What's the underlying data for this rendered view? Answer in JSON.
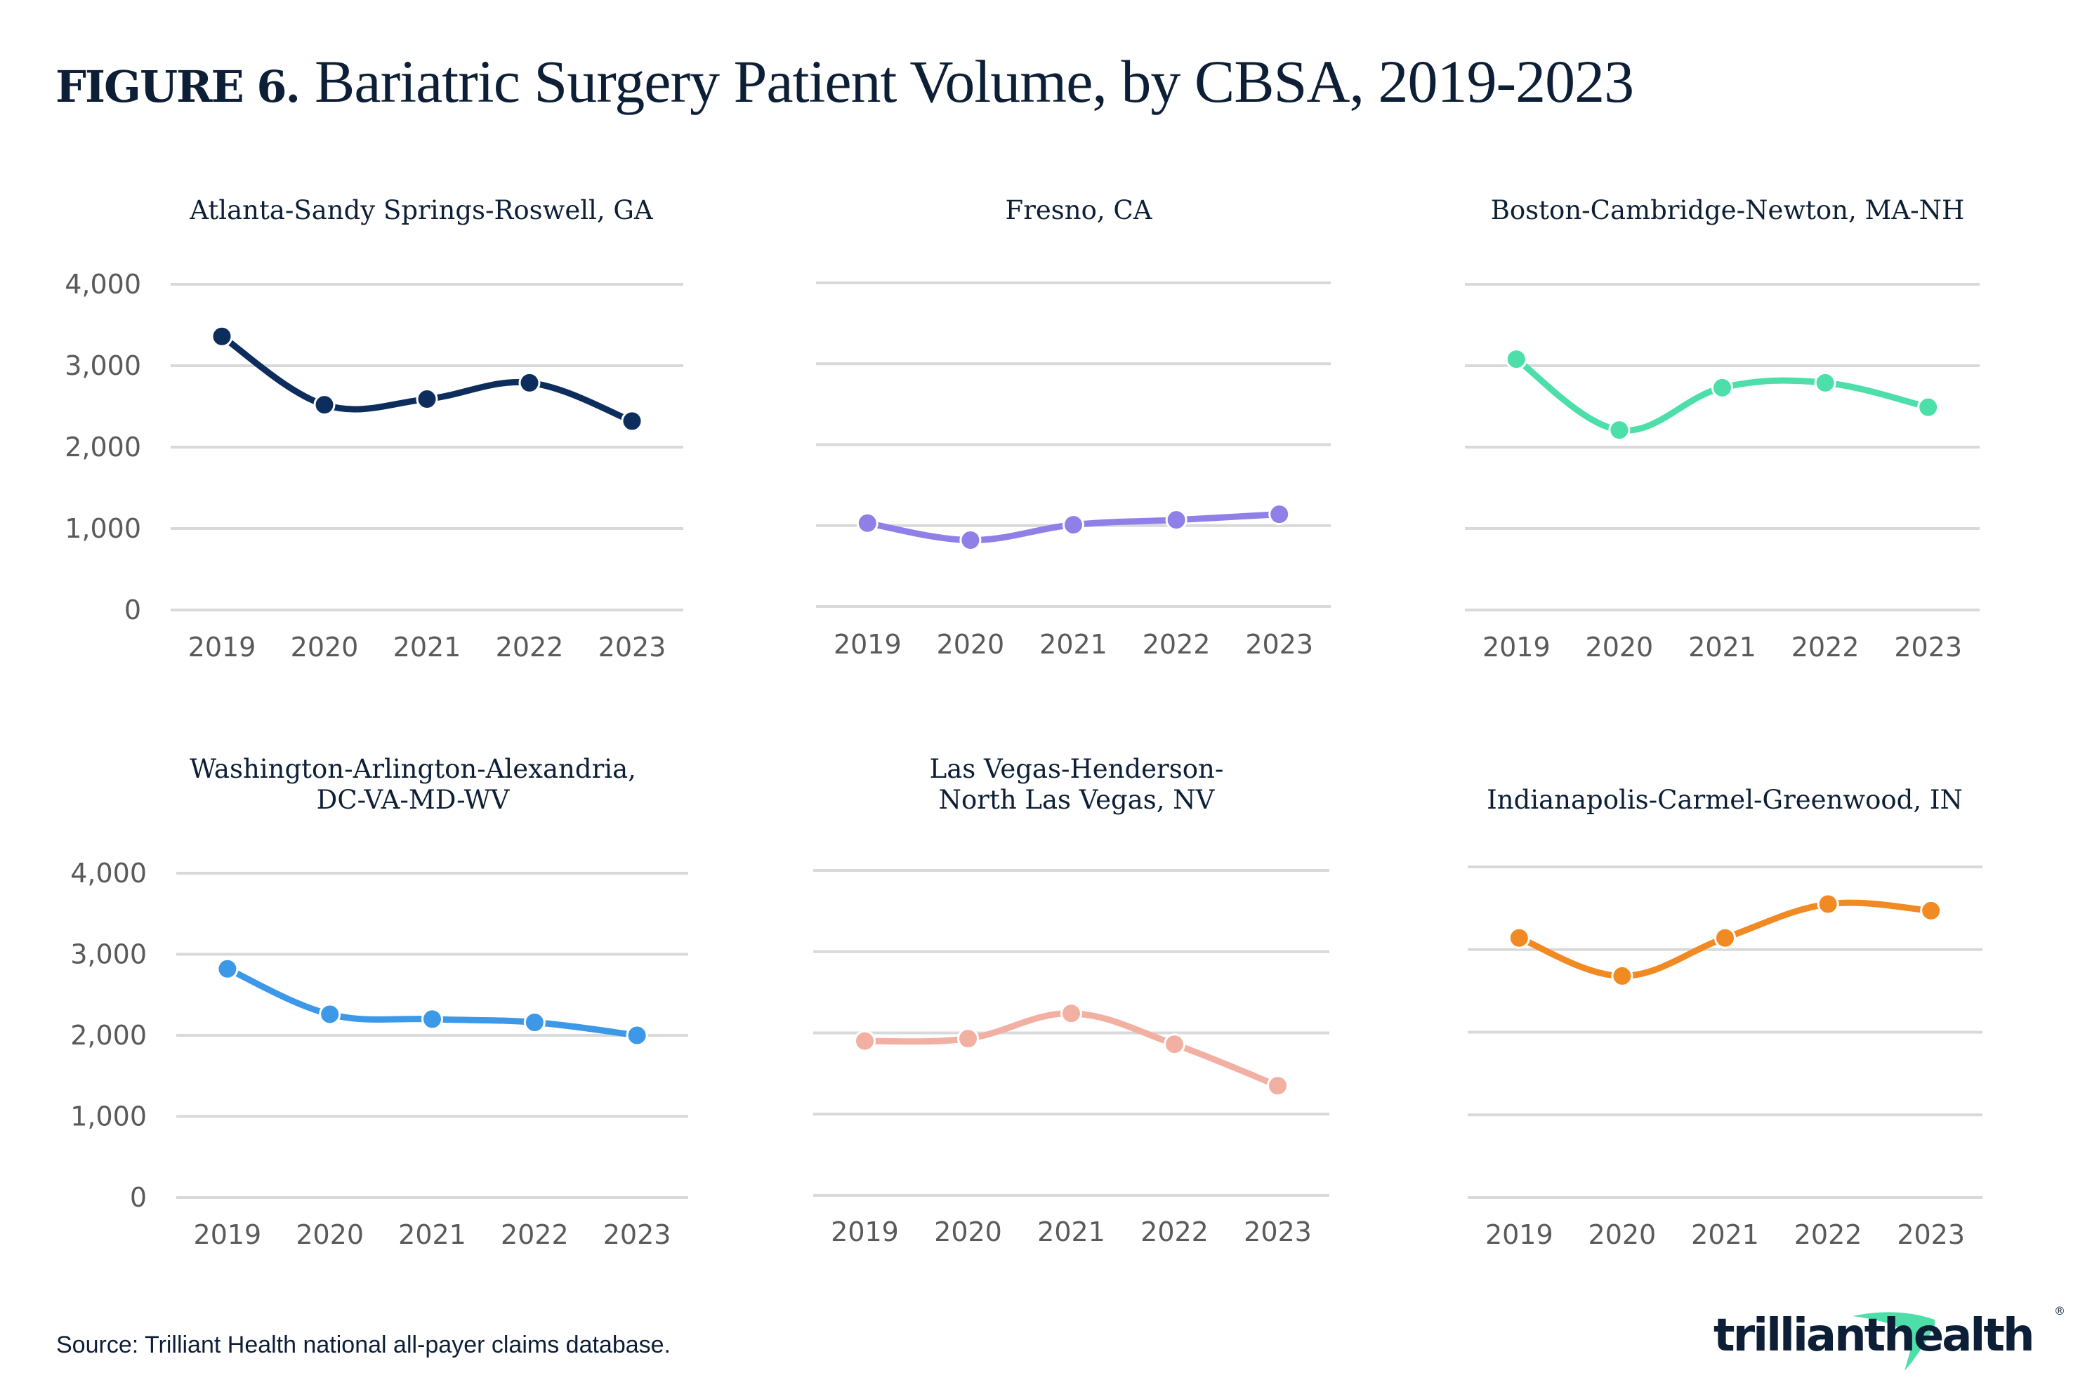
{
  "figure": {
    "number_label": "FIGURE 6.",
    "title": "Bariatric Surgery Patient Volume, by CBSA, 2019-2023"
  },
  "source": "Source: Trilliant Health national all-payer claims database.",
  "logo": {
    "text_left": "trilliant",
    "text_right": "health",
    "registered_mark": "®",
    "accent_color": "#4cdfa9"
  },
  "chart_data": [
    {
      "type": "line",
      "title": "Atlanta-Sandy Springs-Roswell, GA",
      "title_lines": [
        "Atlanta-Sandy Springs-Roswell, GA"
      ],
      "categories": [
        "2019",
        "2020",
        "2021",
        "2022",
        "2023"
      ],
      "series": [
        {
          "name": "Patient Volume",
          "values": [
            3360,
            2520,
            2590,
            2790,
            2320
          ],
          "color": "#0d2e5c"
        }
      ],
      "ylim": [
        0,
        4000
      ],
      "yticks": [
        0,
        1000,
        2000,
        3000,
        4000
      ],
      "ytick_labels": [
        "0",
        "1,000",
        "2,000",
        "3,000",
        "4,000"
      ],
      "show_ytick_labels": true,
      "grid": true,
      "xlabel": "",
      "ylabel": ""
    },
    {
      "type": "line",
      "title": "Fresno, CA",
      "title_lines": [
        "Fresno, CA"
      ],
      "categories": [
        "2019",
        "2020",
        "2021",
        "2022",
        "2023"
      ],
      "series": [
        {
          "name": "Patient Volume",
          "values": [
            1030,
            820,
            1010,
            1070,
            1140
          ],
          "color": "#8f80e8"
        }
      ],
      "ylim": [
        0,
        4000
      ],
      "yticks": [
        0,
        1000,
        2000,
        3000,
        4000
      ],
      "ytick_labels": [
        "0",
        "1,000",
        "2,000",
        "3,000",
        "4,000"
      ],
      "show_ytick_labels": false,
      "grid": true,
      "xlabel": "",
      "ylabel": ""
    },
    {
      "type": "line",
      "title": "Boston-Cambridge-Newton, MA-NH",
      "title_lines": [
        "Boston-Cambridge-Newton, MA-NH"
      ],
      "categories": [
        "2019",
        "2020",
        "2021",
        "2022",
        "2023"
      ],
      "series": [
        {
          "name": "Patient Volume",
          "values": [
            3080,
            2210,
            2730,
            2790,
            2490
          ],
          "color": "#4cdfa9"
        }
      ],
      "ylim": [
        0,
        4000
      ],
      "yticks": [
        0,
        1000,
        2000,
        3000,
        4000
      ],
      "ytick_labels": [
        "0",
        "1,000",
        "2,000",
        "3,000",
        "4,000"
      ],
      "show_ytick_labels": false,
      "grid": true,
      "xlabel": "",
      "ylabel": ""
    },
    {
      "type": "line",
      "title": "Washington-Arlington-Alexandria, DC-VA-MD-WV",
      "title_lines": [
        "Washington-Arlington-Alexandria,",
        "DC-VA-MD-WV"
      ],
      "categories": [
        "2019",
        "2020",
        "2021",
        "2022",
        "2023"
      ],
      "series": [
        {
          "name": "Patient Volume",
          "values": [
            2820,
            2260,
            2200,
            2160,
            2000
          ],
          "color": "#3d98e8"
        }
      ],
      "ylim": [
        0,
        4000
      ],
      "yticks": [
        0,
        1000,
        2000,
        3000,
        4000
      ],
      "ytick_labels": [
        "0",
        "1,000",
        "2,000",
        "3,000",
        "4,000"
      ],
      "show_ytick_labels": true,
      "grid": true,
      "xlabel": "",
      "ylabel": ""
    },
    {
      "type": "line",
      "title": "Las Vegas-Henderson-North Las Vegas, NV",
      "title_lines": [
        "Las Vegas-Henderson-",
        "North Las Vegas, NV"
      ],
      "categories": [
        "2019",
        "2020",
        "2021",
        "2022",
        "2023"
      ],
      "series": [
        {
          "name": "Patient Volume",
          "values": [
            1900,
            1930,
            2240,
            1860,
            1350
          ],
          "color": "#f2b0a2"
        }
      ],
      "ylim": [
        0,
        4000
      ],
      "yticks": [
        0,
        1000,
        2000,
        3000,
        4000
      ],
      "ytick_labels": [
        "0",
        "1,000",
        "2,000",
        "3,000",
        "4,000"
      ],
      "show_ytick_labels": false,
      "grid": true,
      "xlabel": "",
      "ylabel": ""
    },
    {
      "type": "line",
      "title": "Indianapolis-Carmel-Greenwood, IN",
      "title_lines": [
        "Indianapolis-Carmel-Greenwood, IN"
      ],
      "categories": [
        "2019",
        "2020",
        "2021",
        "2022",
        "2023"
      ],
      "series": [
        {
          "name": "Patient Volume",
          "values": [
            3140,
            2680,
            3140,
            3550,
            3470
          ],
          "color": "#f28a24"
        }
      ],
      "ylim": [
        0,
        4000
      ],
      "yticks": [
        0,
        1000,
        2000,
        3000,
        4000
      ],
      "ytick_labels": [
        "0",
        "1,000",
        "2,000",
        "3,000",
        "4,000"
      ],
      "show_ytick_labels": false,
      "grid": true,
      "xlabel": "",
      "ylabel": ""
    }
  ]
}
